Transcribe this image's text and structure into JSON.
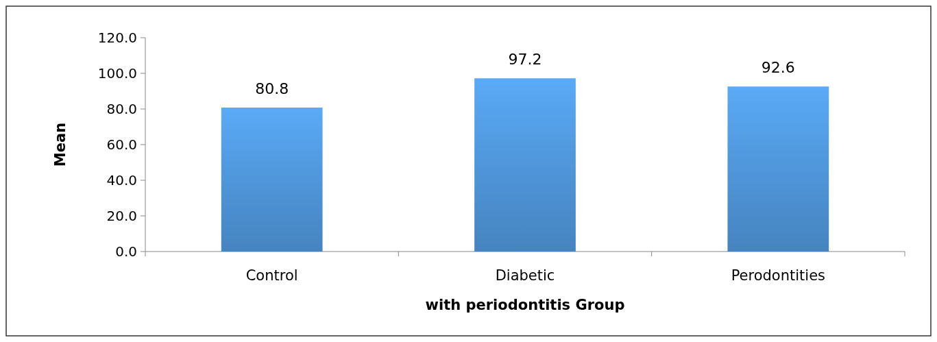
{
  "chart_data": {
    "type": "bar",
    "xlabel": "with periodontitis Group",
    "ylabel": "Mean",
    "categories": [
      "Control",
      "Diabetic",
      "Perodontities"
    ],
    "values": [
      80.8,
      97.2,
      92.6
    ],
    "color": "#4f96da",
    "ylim": [
      0,
      120
    ],
    "yticks": [
      {
        "value": 0,
        "label": "0.0"
      },
      {
        "value": 20,
        "label": "20.0"
      },
      {
        "value": 40,
        "label": "40.0"
      },
      {
        "value": 60,
        "label": "60.0"
      },
      {
        "value": 80,
        "label": "80.0"
      },
      {
        "value": 100,
        "label": "100.0"
      },
      {
        "value": 120,
        "label": "120.0"
      }
    ],
    "data_labels": true
  }
}
